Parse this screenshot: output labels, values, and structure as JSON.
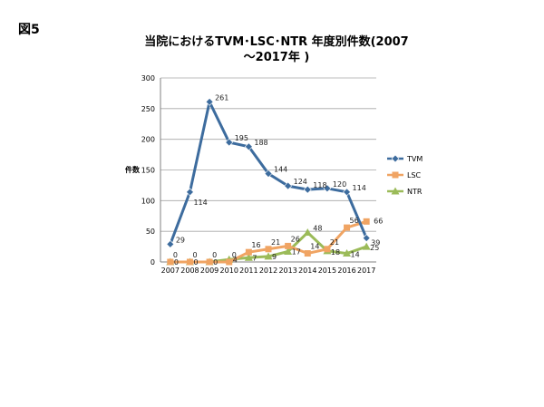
{
  "figure_label": "図5",
  "chart_data": {
    "type": "line",
    "title_line1": "当院におけるTVM･LSC･NTR 年度別件数(2007",
    "title_line2": "～2017年 )",
    "ylabel": "件数",
    "xlabel": "",
    "categories": [
      "2007",
      "2008",
      "2009",
      "2010",
      "2011",
      "2012",
      "2013",
      "2014",
      "2015",
      "2016",
      "2017"
    ],
    "ylim": [
      0,
      300
    ],
    "yticks": [
      0,
      50,
      100,
      150,
      200,
      250,
      300
    ],
    "grid": true,
    "legend_position": "right",
    "series": [
      {
        "name": "TVM",
        "color": "#3d6c9e",
        "marker": "diamond",
        "values": [
          29,
          114,
          261,
          195,
          188,
          144,
          124,
          118,
          120,
          114,
          39
        ],
        "labels": [
          "29",
          "114",
          "261",
          "195",
          "188",
          "144",
          "124",
          "118",
          "120",
          "114",
          "39"
        ]
      },
      {
        "name": "LSC",
        "color": "#f0a463",
        "marker": "square",
        "values": [
          0,
          0,
          0,
          0,
          16,
          21,
          26,
          14,
          21,
          56,
          66
        ],
        "labels": [
          "0",
          "0",
          "0",
          "0",
          "16",
          "21",
          "26",
          "14",
          "21",
          "56",
          "66"
        ]
      },
      {
        "name": "NTR",
        "color": "#9bbb59",
        "marker": "triangle",
        "values": [
          0,
          0,
          0,
          4,
          7,
          9,
          17,
          48,
          18,
          14,
          25
        ],
        "labels": [
          "0",
          "0",
          "0",
          "4",
          "7",
          "9",
          "17",
          "48",
          "18",
          "14",
          "25"
        ]
      }
    ]
  }
}
